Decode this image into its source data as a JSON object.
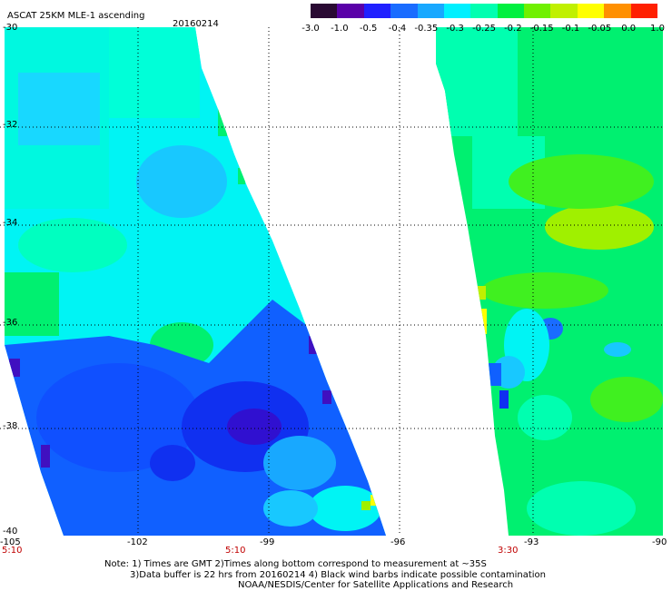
{
  "title": "ASCAT 25KM MLE-1 ascending",
  "date": "20160214",
  "colorbar": {
    "labels": [
      "-3.0",
      "-1.0",
      "-0.5",
      "-0.4",
      "-0.35",
      "-0.3",
      "-0.25",
      "-0.2",
      "-0.15",
      "-0.1",
      "-0.05",
      "0.0",
      "1.0"
    ],
    "colors": [
      "#2a0a33",
      "#5a00a8",
      "#2020ff",
      "#1a6cff",
      "#18a8ff",
      "#00f0ff",
      "#00ffb0",
      "#00f040",
      "#70f000",
      "#c0f000",
      "#ffff00",
      "#ff9000",
      "#ff2000"
    ]
  },
  "y_axis_labels": [
    "-30",
    "-32",
    "-34",
    "-36",
    "-38",
    "-40"
  ],
  "x_axis_labels": [
    "-105",
    "-102",
    "-99",
    "-96",
    "-93",
    "-90"
  ],
  "time_labels": [
    "5:10",
    "5:10",
    "3:30"
  ],
  "notes": [
    "Note: 1) Times are GMT 2)Times along bottom correspond to measurement at ~35S",
    "3)Data buffer is 22 hrs from 20160214 4) Black wind barbs indicate possible contamination",
    "NOAA/NESDIS/Center for Satellite Applications and Research"
  ],
  "map_colors": {
    "cyan": "#00f4f4",
    "aqua": "#00ffd8",
    "green": "#00f070",
    "lime": "#40f020",
    "yellowgreen": "#a0f000",
    "lightblue": "#18c8ff",
    "blue": "#1060ff",
    "deepblue": "#1030f0",
    "indigo": "#3010d0"
  }
}
